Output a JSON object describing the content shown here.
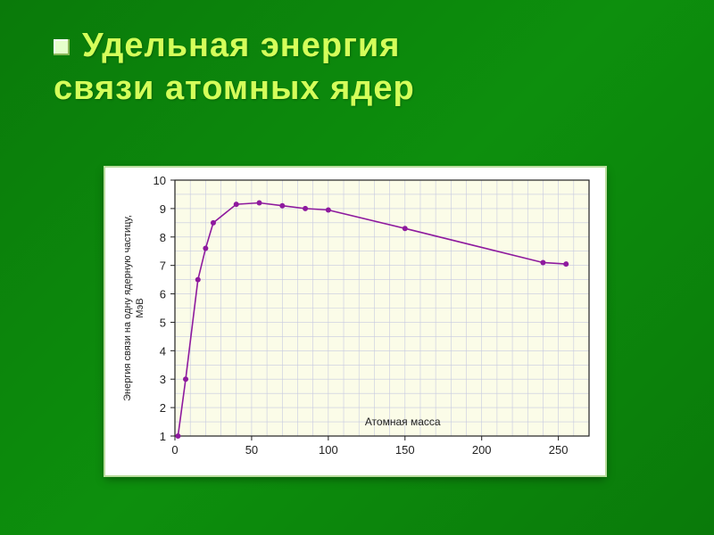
{
  "title_line1": "Удельная  энергия",
  "title_line2": "связи  атомных  ядер",
  "chart": {
    "type": "line-scatter",
    "plot_bg": "#fbfce8",
    "grid_color": "#c6c9e0",
    "axis_color": "#222222",
    "line_color": "#8e1a9e",
    "marker_color": "#8e1a9e",
    "marker_radius": 3,
    "line_width": 1.6,
    "xlabel": "Атомная  масса",
    "ylabel": "Энергия связи на одну ядерную частицу,\nМэВ",
    "label_fontsize": 12,
    "tick_fontsize": 13,
    "xlim": [
      0,
      270
    ],
    "ylim": [
      1,
      10
    ],
    "xticks": [
      0,
      50,
      100,
      150,
      200,
      250
    ],
    "yticks": [
      1,
      2,
      3,
      4,
      5,
      6,
      7,
      8,
      9,
      10
    ],
    "points_x": [
      2,
      7,
      15,
      20,
      25,
      40,
      55,
      70,
      85,
      100,
      150,
      240,
      255
    ],
    "points_y": [
      1.0,
      3.0,
      6.5,
      7.6,
      8.5,
      9.15,
      9.2,
      9.1,
      9.0,
      8.95,
      8.3,
      7.1,
      7.05
    ]
  }
}
